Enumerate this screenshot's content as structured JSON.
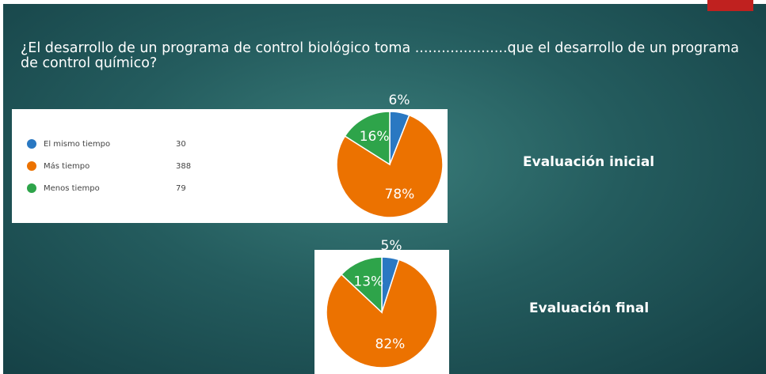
{
  "title": "¿El desarrollo de un programa de control biológico toma .....................que el desarrollo de un programa de control químico?",
  "chart_data": [
    {
      "type": "pie",
      "label": "Evaluación inicial",
      "categories": [
        "El mismo tiempo",
        "Más tiempo",
        "Menos tiempo"
      ],
      "counts": [
        30,
        388,
        79
      ],
      "values": [
        6,
        78,
        16
      ],
      "value_labels": [
        "6%",
        "78%",
        "16%"
      ],
      "colors": [
        "#2a78c2",
        "#ec7200",
        "#2ea44a"
      ]
    },
    {
      "type": "pie",
      "label": "Evaluación final",
      "values": [
        5,
        82,
        13
      ],
      "value_labels": [
        "5%",
        "82%",
        "13%"
      ],
      "colors": [
        "#2a78c2",
        "#ec7200",
        "#2ea44a"
      ]
    }
  ]
}
